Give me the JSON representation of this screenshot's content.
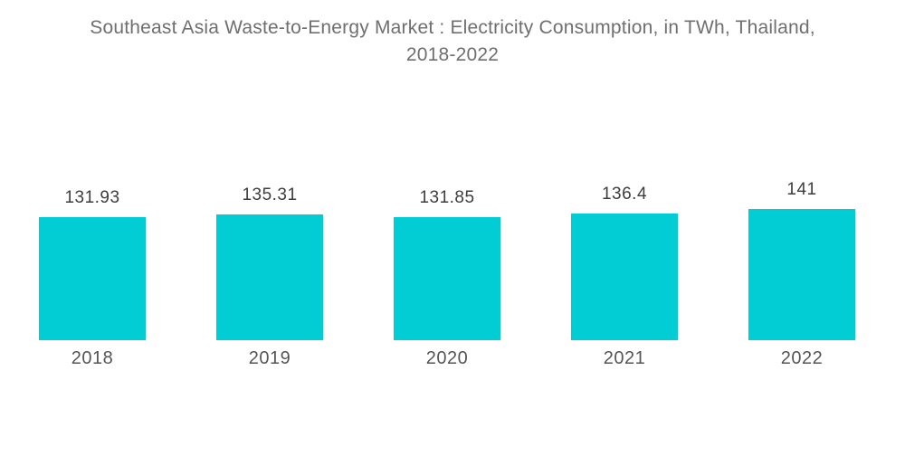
{
  "title": {
    "line1": "Southeast Asia Waste-to-Energy Market : Electricity Consumption, in TWh, Thailand,",
    "line2": "2018-2022"
  },
  "chart_data": {
    "type": "bar",
    "title": "Southeast Asia Waste-to-Energy Market : Electricity Consumption, in TWh, Thailand, 2018-2022",
    "categories": [
      "2018",
      "2019",
      "2020",
      "2021",
      "2022"
    ],
    "values": [
      131.93,
      135.31,
      131.85,
      136.4,
      141
    ],
    "unit": "TWh",
    "xlabel": "",
    "ylabel": "",
    "ylim": [
      0,
      141
    ],
    "grid": false,
    "legend": false,
    "value_labels_shown": true,
    "bar_color": "#03cdd4",
    "title_color": "#6f6f6f",
    "value_label_color": "#3d3d3d",
    "axis_label_color": "#555555",
    "background_color": "#ffffff"
  }
}
